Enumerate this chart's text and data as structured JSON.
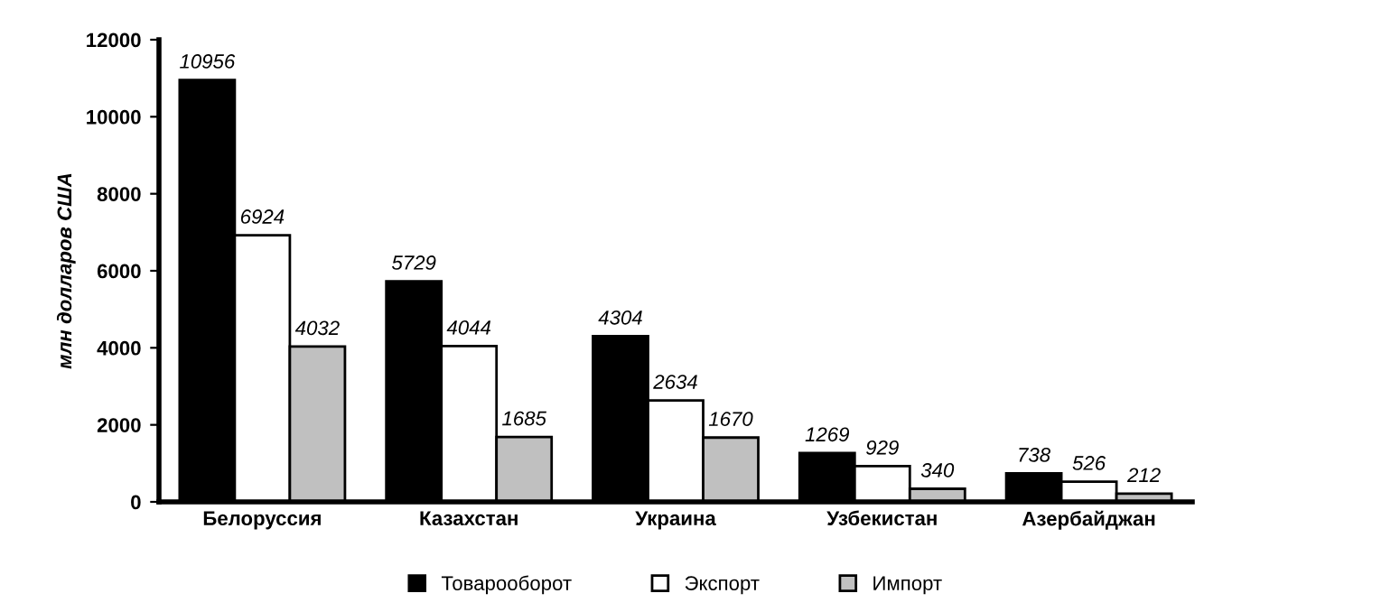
{
  "chart_data": {
    "type": "bar",
    "ylabel": "млн долларов США",
    "categories": [
      "Белоруссия",
      "Казахстан",
      "Украина",
      "Узбекистан",
      "Азербайджан"
    ],
    "series": [
      {
        "name": "Товарооборот",
        "color": "#000000",
        "values": [
          10956,
          5729,
          4304,
          1269,
          738
        ]
      },
      {
        "name": "Экспорт",
        "color": "#ffffff",
        "values": [
          6924,
          4044,
          2634,
          929,
          526
        ]
      },
      {
        "name": "Импорт",
        "color": "#c0c0c0",
        "values": [
          4032,
          1685,
          1670,
          340,
          212
        ]
      }
    ],
    "ylim": [
      0,
      12000
    ],
    "yticks": [
      0,
      2000,
      4000,
      6000,
      8000,
      10000,
      12000
    ],
    "grid": false,
    "legend": "bottom",
    "data_labels": true
  }
}
